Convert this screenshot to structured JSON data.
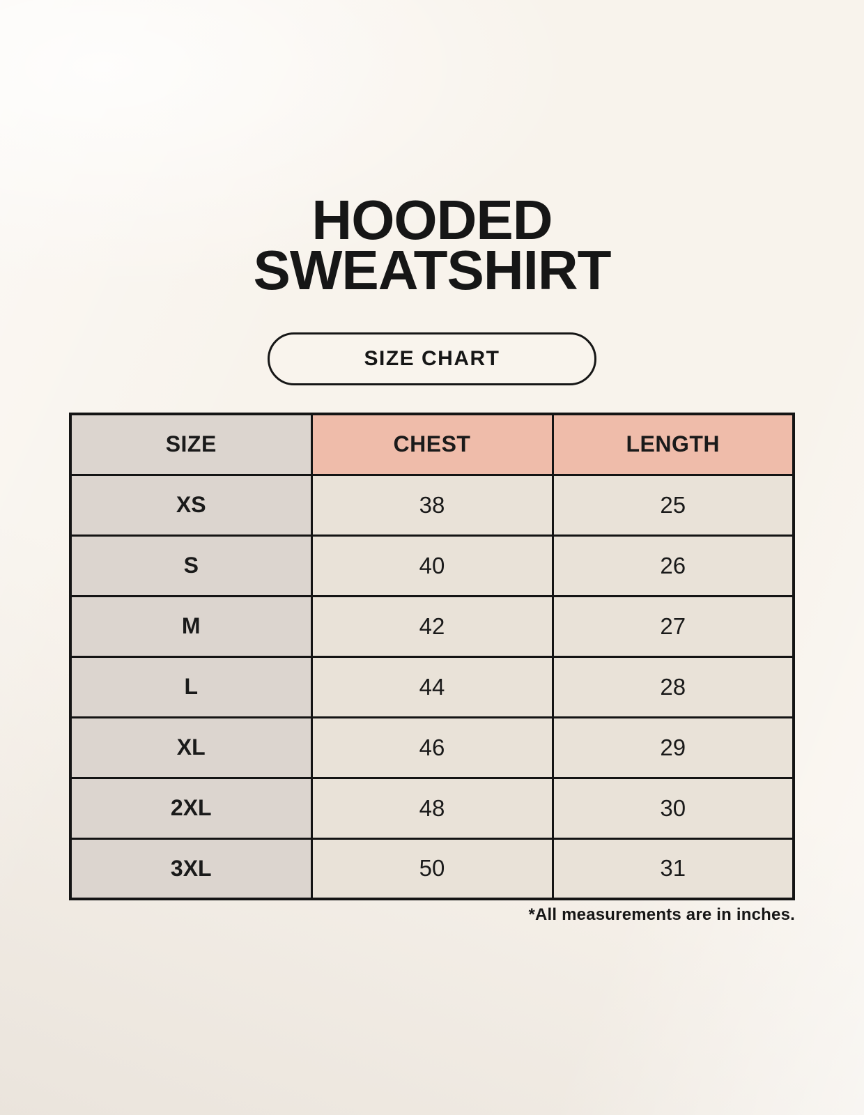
{
  "header": {
    "title_line1": "HOODED",
    "title_line2": "SWEATSHIRT",
    "badge_label": "SIZE CHART"
  },
  "footnote": "*All measurements are in inches.",
  "colors": {
    "page_background": "#F8F3EC",
    "label_column_fill": "#DCD5CF",
    "header_accent_fill": "#EFBCAA",
    "data_cell_fill": "#E9E2D8",
    "table_border": "#141414",
    "text": "#1A1A1A"
  },
  "chart_data": {
    "type": "table",
    "title": "HOODED SWEATSHIRT SIZE CHART",
    "columns": [
      "SIZE",
      "CHEST",
      "LENGTH"
    ],
    "units": "inches",
    "rows": [
      {
        "size": "XS",
        "chest": 38,
        "length": 25
      },
      {
        "size": "S",
        "chest": 40,
        "length": 26
      },
      {
        "size": "M",
        "chest": 42,
        "length": 27
      },
      {
        "size": "L",
        "chest": 44,
        "length": 28
      },
      {
        "size": "XL",
        "chest": 46,
        "length": 29
      },
      {
        "size": "2XL",
        "chest": 48,
        "length": 30
      },
      {
        "size": "3XL",
        "chest": 50,
        "length": 31
      }
    ]
  }
}
